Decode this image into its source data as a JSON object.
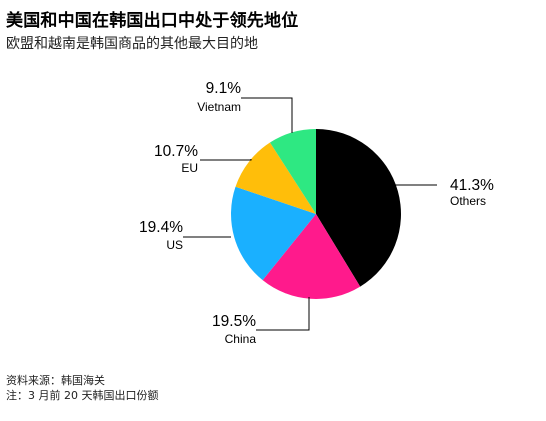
{
  "title": "美国和中国在韩国出口中处于领先地位",
  "subtitle": "欧盟和越南是韩国商品的其他最大目的地",
  "chart_data": {
    "type": "pie",
    "slices": [
      {
        "label": "Others",
        "value": 41.3,
        "display": "41.3%",
        "color": "#000000"
      },
      {
        "label": "China",
        "value": 19.5,
        "display": "19.5%",
        "color": "#ff1a8c"
      },
      {
        "label": "US",
        "value": 19.4,
        "display": "19.4%",
        "color": "#1ab0ff"
      },
      {
        "label": "EU",
        "value": 10.7,
        "display": "10.7%",
        "color": "#ffbe0a"
      },
      {
        "label": "Vietnam",
        "value": 9.1,
        "display": "9.1%",
        "color": "#2ee882"
      }
    ]
  },
  "footer": {
    "source": "资料来源：韩国海关",
    "note": "注：3 月前 20 天韩国出口份额"
  }
}
